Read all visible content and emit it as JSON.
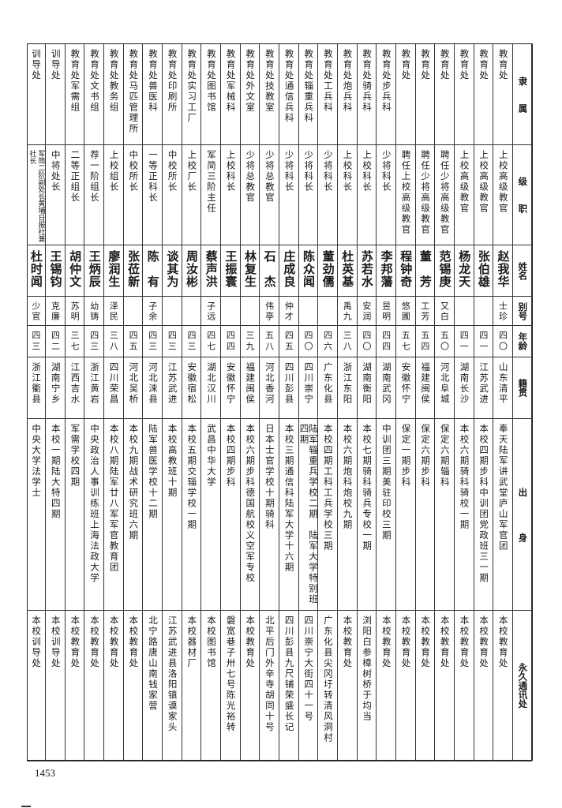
{
  "headers": {
    "affiliation": "隶　　属",
    "rank": "级　　职",
    "name": "姓名",
    "alias": "别号",
    "age": "年龄",
    "origin": "籍贯",
    "background": "出　　　　身",
    "address": "永久通讯处"
  },
  "rows": [
    {
      "affiliation": "教育处",
      "rank": "上校高级教官",
      "name": "赵我华",
      "alias": "士珍",
      "age": "四〇",
      "origin": "山东清平",
      "background": "奉天陆军讲武堂庐山军官团",
      "address": "本校教育处"
    },
    {
      "affiliation": "教育处",
      "rank": "上校高级教官",
      "name": "张伯雄",
      "alias": "",
      "age": "四一",
      "origin": "江苏武进",
      "background": "本校四期步科中训团党政班三一期",
      "address": "本校教育处"
    },
    {
      "affiliation": "教育处",
      "rank": "上校高级教官",
      "name": "杨龙天",
      "alias": "",
      "age": "四一",
      "origin": "湖南长沙",
      "background": "本校六期骑科骑校一期",
      "address": "本校教育处"
    },
    {
      "affiliation": "教育处",
      "rank": "聘任少将高级教官",
      "name": "范锡庚",
      "alias": "又白",
      "age": "五〇",
      "origin": "河北阜城",
      "background": "保定六期辎科",
      "address": "本校教育处"
    },
    {
      "affiliation": "教育处",
      "rank": "聘任少将高级教官",
      "name": "董　芳",
      "alias": "工芳",
      "age": "五四",
      "origin": "福建闽侯",
      "background": "保定六期步科",
      "address": "本校教育处"
    },
    {
      "affiliation": "教育处",
      "rank": "聘任上校高级教官",
      "name": "程钟奇",
      "alias": "悠圃",
      "age": "五七",
      "origin": "安徽怀宁",
      "background": "保定一期步科",
      "address": "本校教育处"
    },
    {
      "affiliation": "教育处步兵科",
      "rank": "少将科长",
      "name": "李邦藩",
      "alias": "昱明",
      "age": "四四",
      "origin": "湖南武冈",
      "background": "中训团三期美驻印校三期",
      "address": "本校教育处"
    },
    {
      "affiliation": "教育处骑兵科",
      "rank": "上校科长",
      "name": "苏若水",
      "alias": "安润",
      "age": "四〇",
      "origin": "湖南衡阳",
      "background": "本校七期骑科骑兵专校一期",
      "address": "浏阳白参樟树桥于均当"
    },
    {
      "affiliation": "教育处炮兵科",
      "rank": "上校科长",
      "name": "杜英基",
      "alias": "禹九",
      "age": "三八",
      "origin": "浙江东阳",
      "background": "本校六期炮科炮校九期",
      "address": "本校教育处"
    },
    {
      "affiliation": "教育处工兵科",
      "rank": "少将科长",
      "name": "董劲儒",
      "alias": "",
      "age": "四六",
      "origin": "广东化县",
      "background": "本校四期工科工兵学校三期",
      "address": "广东化县尖冈圩转清风洞村"
    },
    {
      "affiliation": "教育处辎重兵科",
      "rank": "少将科长",
      "name": "陈众闻",
      "alias": "",
      "age": "四〇",
      "origin": "四川崇宁",
      "background": "陆军辎重兵学校二期　陆军大学特别班四期",
      "address": "四川崇宁大街四十一号"
    },
    {
      "affiliation": "教育处通信兵科",
      "rank": "少将科长",
      "name": "庄成良",
      "alias": "仲才",
      "age": "四五",
      "origin": "四川彭县",
      "background": "本校三期通信科陆军大学十六期",
      "address": "四川彭县九尺铺荣盛长记"
    },
    {
      "affiliation": "教育处技教室",
      "rank": "少将总教官",
      "name": "石　杰",
      "alias": "伟亭",
      "age": "五八",
      "origin": "河北香河",
      "background": "日本士官学校十期骑科",
      "address": "北平后门外辛寺胡同十号"
    },
    {
      "affiliation": "教育处外文室",
      "rank": "少将总教官",
      "name": "林复生",
      "alias": "",
      "age": "三九",
      "origin": "福建闽侯",
      "background": "本校六期步科德国航校义空军专校",
      "address": "本校教育处"
    },
    {
      "affiliation": "教育处军械科",
      "rank": "上校科长",
      "name": "王振寰",
      "alias": "",
      "age": "四四",
      "origin": "安徽怀宁",
      "background": "本校四期步科",
      "address": "磐宽巷子卅七号陈光裕转"
    },
    {
      "affiliation": "教育处图书馆",
      "rank": "军简三阶主任",
      "name": "蔡声洪",
      "alias": "子远",
      "age": "四七",
      "origin": "湖北汉川",
      "background": "武昌中华大学",
      "address": "本校图书馆"
    },
    {
      "affiliation": "教育处实习工厂",
      "rank": "上校厂长",
      "name": "周汝彬",
      "alias": "",
      "age": "四三",
      "origin": "安徽宿松",
      "background": "本校五期交辎学校一期",
      "address": "本校器材厂"
    },
    {
      "affiliation": "教育处印刷所",
      "rank": "中校所长",
      "name": "谈其为",
      "alias": "",
      "age": "四三",
      "origin": "江苏武进",
      "background": "本校高教班十期",
      "address": "江苏武进县洛阳镇谟家头"
    },
    {
      "affiliation": "教育处兽医科",
      "rank": "一等正科长",
      "name": "陈　有",
      "alias": "子余",
      "age": "四三",
      "origin": "河北涞县",
      "background": "陆军兽医学校十二期",
      "address": "北宁路唐山南钱家营"
    },
    {
      "affiliation": "教育处马匹管理所",
      "rank": "中校所长",
      "name": "张莅新",
      "alias": "",
      "age": "四五",
      "origin": "河北吴桥",
      "background": "本校九期战术研究班六期",
      "address": "本校教育处"
    },
    {
      "affiliation": "教育处教务组",
      "rank": "上校组长",
      "name": "廖润生",
      "alias": "泽民",
      "age": "三八",
      "origin": "四川荣昌",
      "background": "本校八期陆军廿八军军官教育团",
      "address": "本校教育处"
    },
    {
      "affiliation": "教育处文书组",
      "rank": "荐一阶组长",
      "name": "王炳辰",
      "alias": "幼铸",
      "age": "四三",
      "origin": "浙江黄岩",
      "background": "中央政治人事训练班上海法政大学",
      "address": "本校教育处"
    },
    {
      "affiliation": "教育处军需组",
      "rank": "二等正组长",
      "name": "胡仲文",
      "alias": "苏明",
      "age": "三七",
      "origin": "江西吉水",
      "background": "军需学校四期",
      "address": "本校教育处"
    },
    {
      "affiliation": "训导处",
      "rank": "中将处长",
      "name": "王锡钧",
      "alias": "克廉",
      "age": "四二",
      "origin": "湖南宁乡",
      "background": "本校一期陆大特四期",
      "address": "本校训导处"
    },
    {
      "affiliation": "训导处",
      "rank": "军简二阶副处长黄埔日报社兼社长",
      "name": "杜时闻",
      "alias": "少官",
      "age": "四三",
      "origin": "浙江衢县",
      "background": "中央大学法学士",
      "address": "本校训导处"
    }
  ],
  "page_number": "1453"
}
